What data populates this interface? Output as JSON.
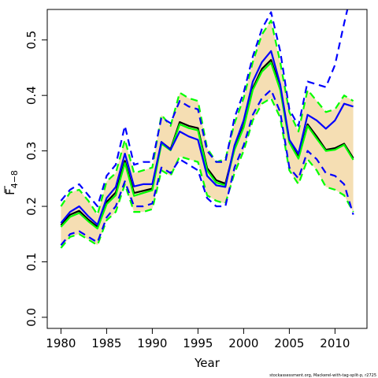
{
  "chart_data": {
    "type": "line",
    "title": "",
    "xlabel": "Year",
    "ylabel": "F",
    "ylabel_sub": "4−8",
    "xlim": [
      1978.5,
      2013.5
    ],
    "ylim": [
      -0.02,
      0.555
    ],
    "x_ticks": [
      1980,
      1985,
      1990,
      1995,
      2000,
      2005,
      2010
    ],
    "y_ticks": [
      0.0,
      0.1,
      0.2,
      0.3,
      0.4,
      0.5
    ],
    "y_tick_labels": [
      "0.0",
      "0.1",
      "0.2",
      "0.3",
      "0.4",
      "0.5"
    ],
    "footnote": "stockassessment.org, Mackerel-with-tag-split-p, r2725",
    "colors": {
      "band": "#f5deb3",
      "black": "#000000",
      "green": "#00ff00",
      "blue": "#0000ff",
      "axis": "#000000"
    },
    "x": [
      1980,
      1981,
      1982,
      1983,
      1984,
      1985,
      1986,
      1987,
      1988,
      1989,
      1990,
      1991,
      1992,
      1993,
      1994,
      1995,
      1996,
      1997,
      1998,
      1999,
      2000,
      2001,
      2002,
      2003,
      2004,
      2005,
      2006,
      2007,
      2008,
      2009,
      2010,
      2011,
      2012
    ],
    "band": {
      "lower": [
        0.125,
        0.145,
        0.15,
        0.14,
        0.13,
        0.175,
        0.19,
        0.24,
        0.19,
        0.19,
        0.195,
        0.265,
        0.255,
        0.29,
        0.285,
        0.28,
        0.22,
        0.21,
        0.205,
        0.26,
        0.3,
        0.355,
        0.385,
        0.395,
        0.36,
        0.265,
        0.24,
        0.285,
        0.265,
        0.235,
        0.23,
        0.22,
        0.19
      ],
      "upper": [
        0.2,
        0.225,
        0.23,
        0.21,
        0.185,
        0.245,
        0.26,
        0.32,
        0.26,
        0.265,
        0.27,
        0.365,
        0.345,
        0.405,
        0.395,
        0.39,
        0.305,
        0.28,
        0.285,
        0.35,
        0.395,
        0.46,
        0.51,
        0.535,
        0.46,
        0.37,
        0.335,
        0.41,
        0.39,
        0.37,
        0.375,
        0.4,
        0.39
      ]
    },
    "series": [
      {
        "role": "estimate",
        "color": "#000000",
        "dash": false,
        "values": [
          0.166,
          0.185,
          0.192,
          0.176,
          0.163,
          0.208,
          0.225,
          0.282,
          0.224,
          0.228,
          0.232,
          0.316,
          0.303,
          0.352,
          0.345,
          0.341,
          0.269,
          0.247,
          0.241,
          0.305,
          0.345,
          0.413,
          0.448,
          0.464,
          0.414,
          0.318,
          0.289,
          0.348,
          0.326,
          0.302,
          0.305,
          0.313,
          0.287
        ]
      },
      {
        "role": "estimate",
        "color": "#00ff00",
        "dash": false,
        "values": [
          0.163,
          0.181,
          0.188,
          0.173,
          0.16,
          0.204,
          0.22,
          0.278,
          0.219,
          0.224,
          0.229,
          0.313,
          0.301,
          0.348,
          0.341,
          0.337,
          0.265,
          0.243,
          0.238,
          0.302,
          0.342,
          0.41,
          0.443,
          0.459,
          0.41,
          0.315,
          0.286,
          0.345,
          0.322,
          0.3,
          0.302,
          0.311,
          0.284
        ]
      },
      {
        "role": "estimate",
        "color": "#0000ff",
        "dash": false,
        "values": [
          0.17,
          0.19,
          0.2,
          0.182,
          0.167,
          0.215,
          0.235,
          0.295,
          0.236,
          0.24,
          0.24,
          0.316,
          0.302,
          0.335,
          0.326,
          0.32,
          0.255,
          0.238,
          0.235,
          0.31,
          0.355,
          0.425,
          0.46,
          0.48,
          0.42,
          0.32,
          0.295,
          0.365,
          0.355,
          0.34,
          0.355,
          0.385,
          0.38
        ]
      },
      {
        "role": "lower",
        "color": "#00ff00",
        "dash": true,
        "values": [
          0.125,
          0.145,
          0.15,
          0.14,
          0.13,
          0.175,
          0.19,
          0.24,
          0.19,
          0.19,
          0.195,
          0.265,
          0.255,
          0.29,
          0.285,
          0.28,
          0.22,
          0.21,
          0.205,
          0.26,
          0.3,
          0.355,
          0.385,
          0.395,
          0.36,
          0.265,
          0.24,
          0.285,
          0.265,
          0.235,
          0.23,
          0.22,
          0.19
        ]
      },
      {
        "role": "upper",
        "color": "#00ff00",
        "dash": true,
        "values": [
          0.2,
          0.225,
          0.23,
          0.21,
          0.185,
          0.245,
          0.26,
          0.32,
          0.26,
          0.265,
          0.27,
          0.365,
          0.345,
          0.405,
          0.395,
          0.39,
          0.305,
          0.28,
          0.285,
          0.35,
          0.395,
          0.46,
          0.51,
          0.535,
          0.46,
          0.37,
          0.335,
          0.41,
          0.39,
          0.37,
          0.375,
          0.4,
          0.39
        ]
      },
      {
        "role": "lower",
        "color": "#0000ff",
        "dash": true,
        "values": [
          0.13,
          0.15,
          0.155,
          0.145,
          0.135,
          0.18,
          0.2,
          0.245,
          0.2,
          0.2,
          0.205,
          0.27,
          0.26,
          0.285,
          0.275,
          0.265,
          0.215,
          0.2,
          0.2,
          0.27,
          0.31,
          0.365,
          0.395,
          0.41,
          0.37,
          0.27,
          0.25,
          0.3,
          0.285,
          0.26,
          0.255,
          0.24,
          0.185
        ]
      },
      {
        "role": "upper",
        "color": "#0000ff",
        "dash": true,
        "values": [
          0.21,
          0.23,
          0.24,
          0.22,
          0.2,
          0.255,
          0.275,
          0.345,
          0.275,
          0.28,
          0.28,
          0.36,
          0.35,
          0.39,
          0.38,
          0.375,
          0.3,
          0.28,
          0.28,
          0.36,
          0.405,
          0.47,
          0.52,
          0.55,
          0.48,
          0.375,
          0.345,
          0.425,
          0.42,
          0.415,
          0.455,
          0.53,
          0.6
        ]
      }
    ]
  }
}
